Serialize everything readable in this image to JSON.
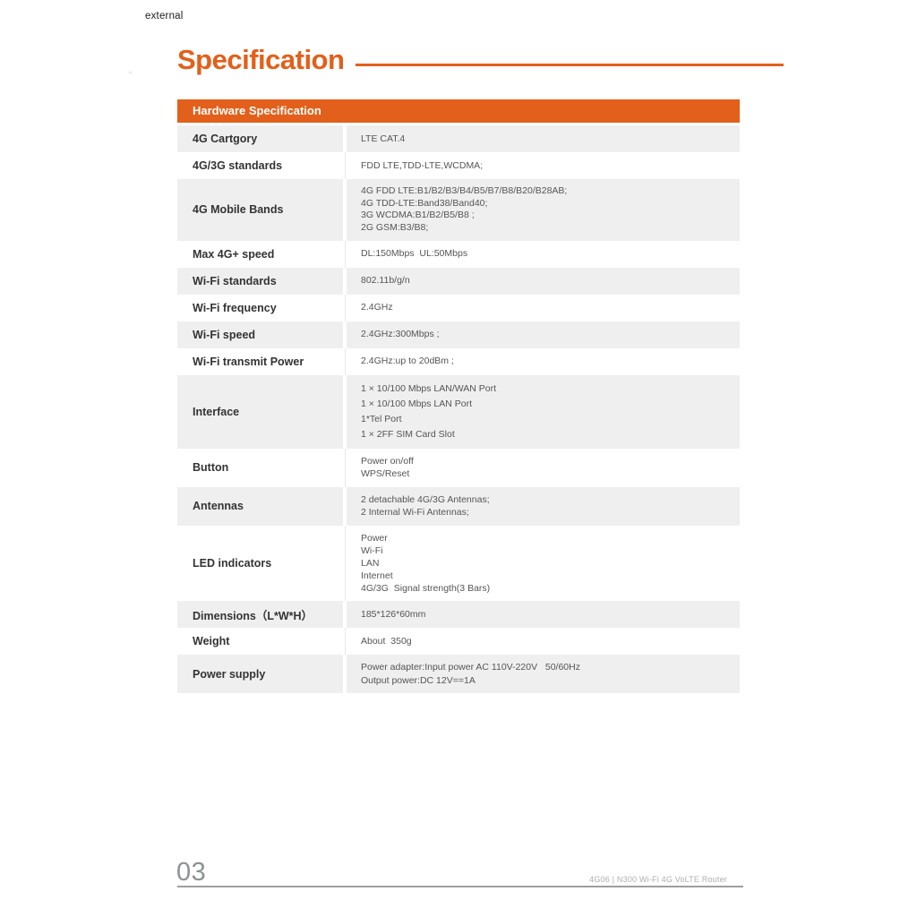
{
  "page": {
    "corner_label": "external",
    "title": "Specification"
  },
  "table": {
    "header": "Hardware Specification",
    "rows": [
      {
        "label": "4G Cartgory",
        "value": "LTE CAT.4"
      },
      {
        "label": "4G/3G standards",
        "value": "FDD LTE,TDD-LTE,WCDMA;"
      },
      {
        "label": "4G Mobile Bands",
        "value": "4G FDD LTE:B1/B2/B3/B4/B5/B7/B8/B20/B28AB;\n4G TDD-LTE:Band38/Band40;\n3G WCDMA:B1/B2/B5/B8 ;\n2G GSM:B3/B8;"
      },
      {
        "label": "Max 4G+ speed",
        "value": "DL:150Mbps  UL:50Mbps"
      },
      {
        "label": "Wi-Fi standards",
        "value": "802.11b/g/n"
      },
      {
        "label": "Wi-Fi frequency",
        "value": "2.4GHz"
      },
      {
        "label": "Wi-Fi speed",
        "value": "2.4GHz:300Mbps ;"
      },
      {
        "label": "Wi-Fi transmit Power",
        "value": "2.4GHz:up to 20dBm ;"
      },
      {
        "label": "Interface",
        "value": "1 × 10/100 Mbps LAN/WAN Port\n1 × 10/100 Mbps LAN Port\n1*Tel Port\n1 × 2FF SIM Card Slot"
      },
      {
        "label": "Button",
        "value": "Power on/off\nWPS/Reset"
      },
      {
        "label": "Antennas",
        "value": "2 detachable 4G/3G Antennas;\n2 Internal Wi-Fi Antennas;"
      },
      {
        "label": "LED indicators",
        "value": "Power\nWi-Fi\nLAN\nInternet\n4G/3G  Signal strength(3 Bars)"
      },
      {
        "label": "Dimensions（L*W*H）",
        "value": "185*126*60mm"
      },
      {
        "label": "Weight",
        "value": "About  350g"
      },
      {
        "label": "Power supply",
        "value": "Power adapter:Input power AC 110V-220V   50/60Hz\nOutput power:DC 12V==1A"
      }
    ]
  },
  "footer": {
    "page_number": "03",
    "doc_label": "4G06 | N300 Wi-Fi 4G VoLTE Router"
  },
  "colors": {
    "accent": "#E2601B",
    "row_alt": "#EFEFEF",
    "header_text": "#FFFFFF"
  }
}
